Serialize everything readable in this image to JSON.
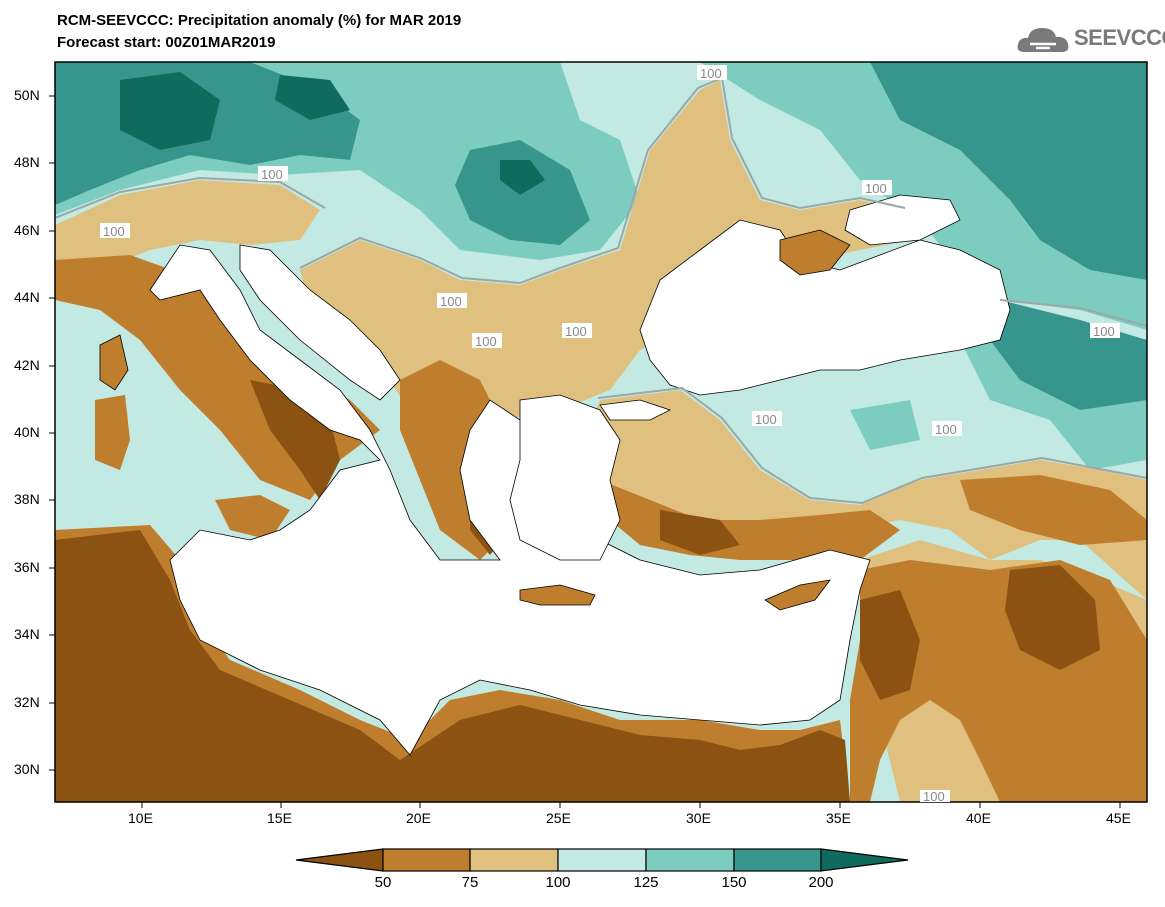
{
  "title_line1": "RCM-SEEVCCC: Precipitation anomaly (%) for MAR 2019",
  "title_line2": "Forecast start: 00Z01MAR2019",
  "logo_text": "SEEVCCC",
  "lat_labels": [
    "50N",
    "48N",
    "46N",
    "44N",
    "42N",
    "40N",
    "38N",
    "36N",
    "34N",
    "32N",
    "30N"
  ],
  "lon_labels": [
    "10E",
    "15E",
    "20E",
    "25E",
    "30E",
    "35E",
    "40E",
    "45E"
  ],
  "contour_label": "100",
  "colorbar": {
    "labels": [
      "50",
      "75",
      "100",
      "125",
      "150",
      "200"
    ],
    "colors": [
      "#8c5212",
      "#bf7d2e",
      "#dfc07f",
      "#c3e9e3",
      "#7ccdbf",
      "#36958c",
      "#0f6b5e"
    ]
  },
  "colors": {
    "land_ocean": "#ffffff",
    "very_dry": "#8c5212",
    "dry": "#bf7d2e",
    "slightly_dry": "#dfc07f",
    "slightly_wet": "#c3e9e3",
    "wet": "#7ccdbf",
    "very_wet": "#36958c",
    "extreme_wet": "#0f6b5e",
    "contour": "#9aa8a8"
  }
}
